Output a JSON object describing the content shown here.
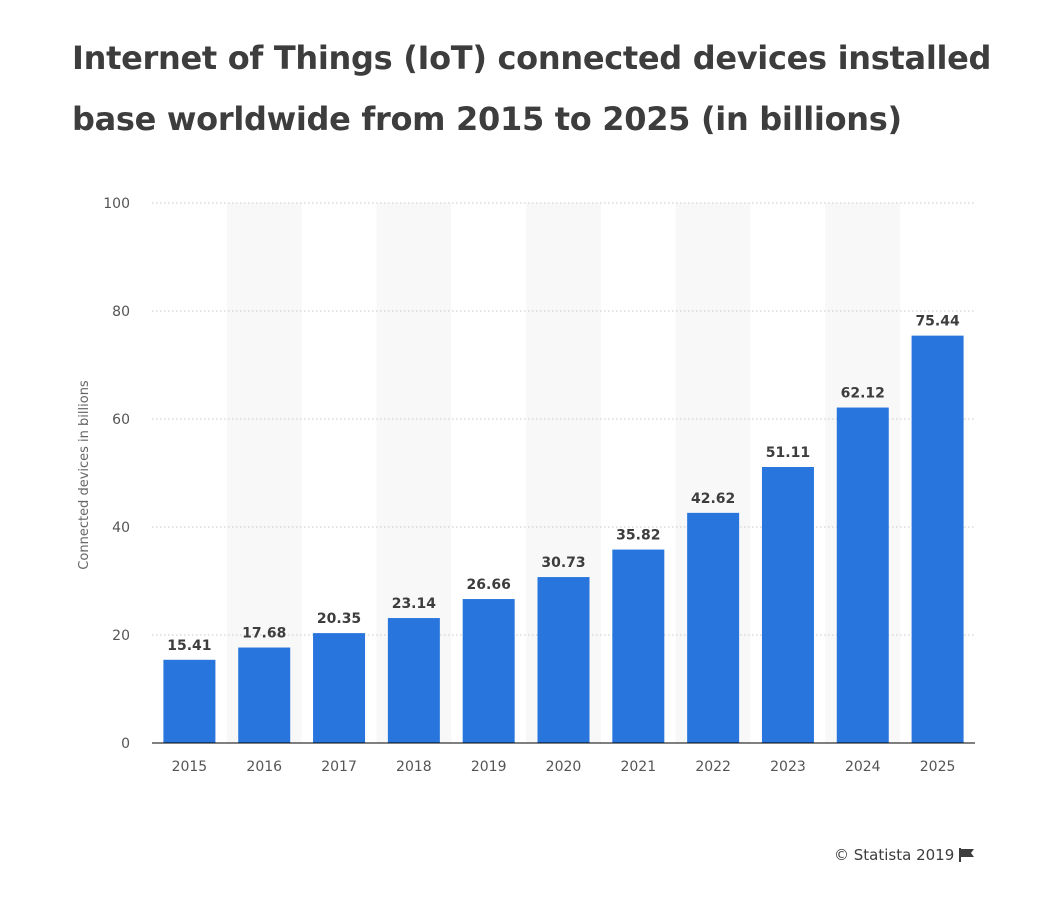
{
  "title": "Internet of Things (IoT) connected devices installed base worldwide from 2015 to  2025 (in billions)",
  "credit": "© Statista 2019",
  "colors": {
    "bar": "#2876dd",
    "band": "#f8f8f8",
    "grid": "#c8c8c8",
    "axis": "#000000",
    "text": "#3d3d3d",
    "tick": "#555555"
  },
  "chart_data": {
    "type": "bar",
    "categories": [
      "2015",
      "2016",
      "2017",
      "2018",
      "2019",
      "2020",
      "2021",
      "2022",
      "2023",
      "2024",
      "2025"
    ],
    "values": [
      15.41,
      17.68,
      20.35,
      23.14,
      26.66,
      30.73,
      35.82,
      42.62,
      51.11,
      62.12,
      75.44
    ],
    "value_labels": [
      "15.41",
      "17.68",
      "20.35",
      "23.14",
      "26.66",
      "30.73",
      "35.82",
      "42.62",
      "51.11",
      "62.12",
      "75.44"
    ],
    "ylabel": "Connected devices in billions",
    "xlabel": "",
    "ylim": [
      0,
      100
    ],
    "yticks": [
      0,
      20,
      40,
      60,
      80,
      100
    ],
    "grid": true,
    "legend": "none"
  }
}
